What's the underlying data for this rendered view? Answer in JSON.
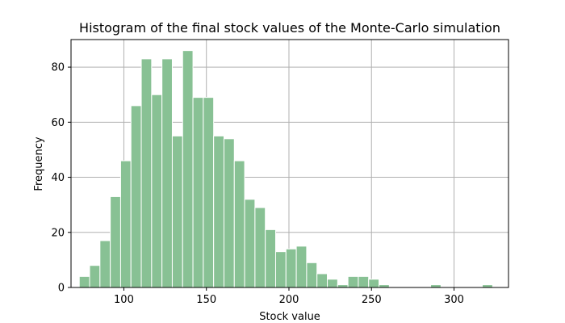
{
  "chart_data": {
    "type": "bar",
    "title": "Histogram of the final stock values of the Monte-Carlo simulation",
    "xlabel": "Stock value",
    "ylabel": "Frequency",
    "xlim": [
      68,
      333
    ],
    "ylim": [
      0,
      90
    ],
    "xticks": [
      100,
      150,
      200,
      250,
      300
    ],
    "yticks": [
      0,
      20,
      40,
      60,
      80
    ],
    "grid": true,
    "bar_color": "#88c194",
    "bin_width": 6.26,
    "bins": [
      {
        "x0": 73.0,
        "value": 4
      },
      {
        "x0": 79.26,
        "value": 8
      },
      {
        "x0": 85.52,
        "value": 17
      },
      {
        "x0": 91.78,
        "value": 33
      },
      {
        "x0": 98.04,
        "value": 46
      },
      {
        "x0": 104.3,
        "value": 66
      },
      {
        "x0": 110.56,
        "value": 83
      },
      {
        "x0": 116.82,
        "value": 70
      },
      {
        "x0": 123.08,
        "value": 83
      },
      {
        "x0": 129.34,
        "value": 55
      },
      {
        "x0": 135.6,
        "value": 86
      },
      {
        "x0": 141.86,
        "value": 69
      },
      {
        "x0": 148.12,
        "value": 69
      },
      {
        "x0": 154.38,
        "value": 55
      },
      {
        "x0": 160.64,
        "value": 54
      },
      {
        "x0": 166.9,
        "value": 46
      },
      {
        "x0": 173.16,
        "value": 32
      },
      {
        "x0": 179.42,
        "value": 29
      },
      {
        "x0": 185.68,
        "value": 21
      },
      {
        "x0": 191.94,
        "value": 13
      },
      {
        "x0": 198.2,
        "value": 14
      },
      {
        "x0": 204.46,
        "value": 15
      },
      {
        "x0": 210.72,
        "value": 9
      },
      {
        "x0": 216.98,
        "value": 5
      },
      {
        "x0": 223.24,
        "value": 3
      },
      {
        "x0": 229.5,
        "value": 1
      },
      {
        "x0": 235.76,
        "value": 4
      },
      {
        "x0": 242.02,
        "value": 4
      },
      {
        "x0": 248.28,
        "value": 3
      },
      {
        "x0": 254.54,
        "value": 1
      },
      {
        "x0": 285.84,
        "value": 1
      },
      {
        "x0": 317.14,
        "value": 1
      }
    ]
  }
}
